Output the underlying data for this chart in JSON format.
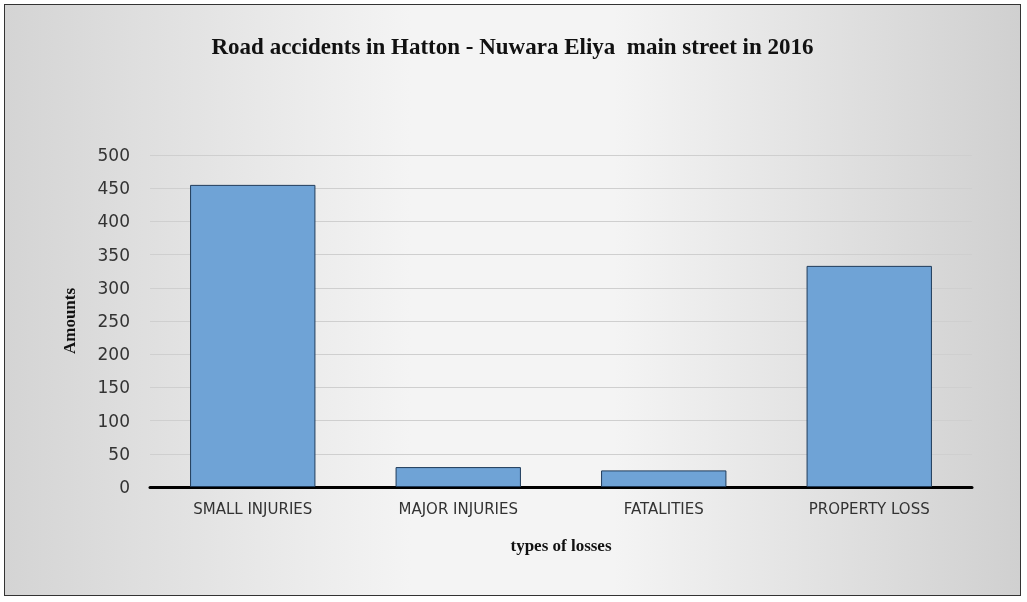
{
  "chart_data": {
    "type": "bar",
    "title": "Road accidents in Hatton - Nuwara Eliya  main street in 2016",
    "xlabel": "types of losses",
    "ylabel": "Amounts",
    "categories": [
      "SMALL INJURIES",
      "MAJOR INJURIES",
      "FATALITIES",
      "PROPERTY LOSS"
    ],
    "values": [
      455,
      30,
      25,
      333
    ],
    "color": "#6fa3d6",
    "ylim": [
      0,
      500
    ],
    "yticks": [
      0,
      50,
      100,
      150,
      200,
      250,
      300,
      350,
      400,
      450,
      500
    ],
    "grid": "y"
  }
}
